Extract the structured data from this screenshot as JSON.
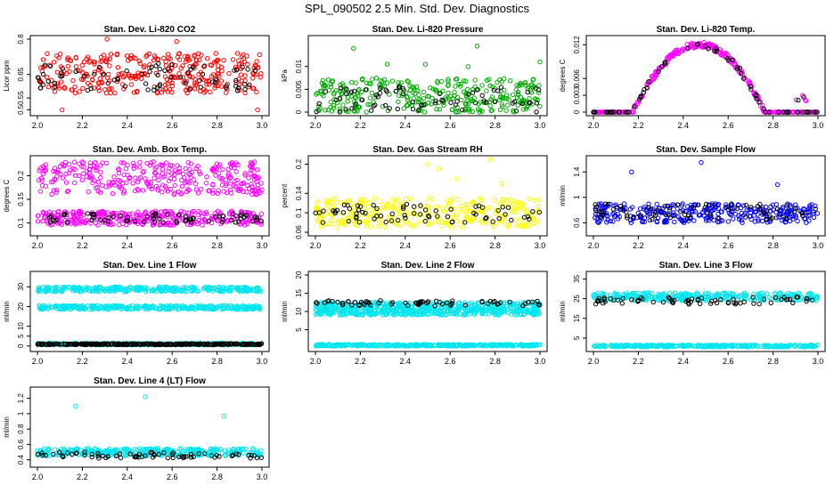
{
  "page_title": "SPL_090502  2.5 Min. Std. Dev. Diagnostics",
  "chart_data": [
    {
      "type": "scatter",
      "title": "Stan. Dev. Li-820 CO2",
      "ylabel": "Licor ppm",
      "xlim": [
        2.0,
        3.0
      ],
      "ylim": [
        0.49,
        0.8
      ],
      "xticks": [
        2.0,
        2.2,
        2.4,
        2.6,
        2.8,
        3.0
      ],
      "yticks": [
        0.5,
        0.55,
        0.65,
        0.8
      ],
      "series": [
        {
          "color": "#ff0000",
          "band": [
            0.57,
            0.74
          ],
          "outliers": [
            [
              2.31,
              0.8
            ],
            [
              2.62,
              0.79
            ],
            [
              2.11,
              0.5
            ],
            [
              2.98,
              0.5
            ]
          ]
        },
        {
          "color": "#000000",
          "band": [
            0.58,
            0.7
          ],
          "sparse": true
        }
      ]
    },
    {
      "type": "scatter",
      "title": "Stan. Dev. Li-820 Pressure",
      "ylabel": "kPa",
      "xlim": [
        2.0,
        3.0
      ],
      "ylim": [
        0.0,
        0.016
      ],
      "xticks": [
        2.0,
        2.2,
        2.4,
        2.6,
        2.8,
        3.0
      ],
      "yticks": [
        0.0,
        0.005,
        0.01
      ],
      "series": [
        {
          "color": "#00aa00",
          "band": [
            0.0,
            0.0075
          ],
          "outliers": [
            [
              2.17,
              0.014
            ],
            [
              2.72,
              0.0145
            ],
            [
              2.32,
              0.0105
            ],
            [
              2.49,
              0.0105
            ],
            [
              2.68,
              0.01
            ],
            [
              3.0,
              0.011
            ]
          ]
        },
        {
          "color": "#000000",
          "band": [
            0.0,
            0.006
          ],
          "sparse": true
        }
      ]
    },
    {
      "type": "scatter",
      "title": "Stan. Dev. Li-820 Temp.",
      "ylabel": "degrees C",
      "xlim": [
        2.0,
        3.0
      ],
      "ylim": [
        0.0,
        0.013
      ],
      "xticks": [
        2.0,
        2.2,
        2.4,
        2.6,
        2.8,
        3.0
      ],
      "yticks": [
        0.0,
        0.003,
        0.006,
        0.012
      ],
      "series": [
        {
          "color": "#ff00ff",
          "profile": "dome",
          "peak": 0.0125
        },
        {
          "color": "#000000",
          "profile": "dome",
          "peak": 0.0125,
          "sparse": true
        }
      ]
    },
    {
      "type": "scatter",
      "title": "Stan. Dev. Amb. Box Temp.",
      "ylabel": "degrees C",
      "xlim": [
        2.0,
        3.0
      ],
      "ylim": [
        0.08,
        0.235
      ],
      "xticks": [
        2.0,
        2.2,
        2.4,
        2.6,
        2.8,
        3.0
      ],
      "yticks": [
        0.1,
        0.15,
        0.2
      ],
      "series": [
        {
          "color": "#ff00ff",
          "band": [
            0.16,
            0.23
          ]
        },
        {
          "color": "#ff00ff",
          "band": [
            0.095,
            0.125
          ]
        },
        {
          "color": "#000000",
          "band": [
            0.1,
            0.12
          ],
          "sparse": true
        }
      ]
    },
    {
      "type": "scatter",
      "title": "Stan. Dev. Gas Stream RH",
      "ylabel": "percent",
      "xlim": [
        2.0,
        3.0
      ],
      "ylim": [
        0.06,
        0.21
      ],
      "xticks": [
        2.0,
        2.2,
        2.4,
        2.6,
        2.8,
        3.0
      ],
      "yticks": [
        0.06,
        0.1,
        0.14,
        0.2
      ],
      "series": [
        {
          "color": "#ffff00",
          "band": [
            0.07,
            0.13
          ],
          "outliers": [
            [
              2.5,
              0.2
            ],
            [
              2.55,
              0.19
            ],
            [
              2.63,
              0.17
            ],
            [
              2.78,
              0.21
            ],
            [
              2.83,
              0.16
            ]
          ]
        },
        {
          "color": "#000000",
          "band": [
            0.08,
            0.12
          ],
          "sparse": true
        }
      ]
    },
    {
      "type": "scatter",
      "title": "Stan. Dev. Sample Flow",
      "ylabel": "ml/min",
      "xlim": [
        2.0,
        3.0
      ],
      "ylim": [
        0.45,
        1.6
      ],
      "xticks": [
        2.0,
        2.2,
        2.4,
        2.6,
        2.8,
        3.0
      ],
      "yticks": [
        0.6,
        1.0,
        1.4
      ],
      "series": [
        {
          "color": "#0000ff",
          "band": [
            0.6,
            0.9
          ],
          "outliers": [
            [
              2.17,
              1.4
            ],
            [
              2.48,
              1.55
            ],
            [
              2.82,
              1.2
            ]
          ]
        },
        {
          "color": "#000000",
          "band": [
            0.65,
            0.9
          ],
          "sparse": true
        }
      ]
    },
    {
      "type": "scatter",
      "title": "Stan. Dev. Line 1 Flow",
      "ylabel": "ml/min",
      "xlim": [
        2.0,
        3.0
      ],
      "ylim": [
        -1,
        36
      ],
      "xticks": [
        2.0,
        2.2,
        2.4,
        2.6,
        2.8,
        3.0
      ],
      "yticks": [
        0,
        5,
        10,
        20,
        30
      ],
      "series": [
        {
          "color": "#00e5ee",
          "band": [
            27.5,
            30
          ]
        },
        {
          "color": "#00e5ee",
          "band": [
            18.5,
            20.5
          ]
        },
        {
          "color": "#00e5ee",
          "band": [
            0.5,
            1.5
          ]
        },
        {
          "color": "#000000",
          "band": [
            0.6,
            1.2
          ]
        }
      ]
    },
    {
      "type": "scatter",
      "title": "Stan. Dev. Line 2 Flow",
      "ylabel": "ml/min",
      "xlim": [
        2.0,
        3.0
      ],
      "ylim": [
        0,
        20
      ],
      "xticks": [
        2.0,
        2.2,
        2.4,
        2.6,
        2.8,
        3.0
      ],
      "yticks": [
        5,
        10,
        15,
        20
      ],
      "series": [
        {
          "color": "#00e5ee",
          "band": [
            10.5,
            12.5
          ]
        },
        {
          "color": "#00e5ee",
          "band": [
            9,
            10.5
          ]
        },
        {
          "color": "#00e5ee",
          "band": [
            0.5,
            1
          ]
        },
        {
          "color": "#000000",
          "band": [
            11.5,
            13
          ],
          "sparse": true
        }
      ]
    },
    {
      "type": "scatter",
      "title": "Stan. Dev. Line 3 Flow",
      "ylabel": "ml/min",
      "xlim": [
        2.0,
        3.0
      ],
      "ylim": [
        0,
        37
      ],
      "xticks": [
        2.0,
        2.2,
        2.4,
        2.6,
        2.8,
        3.0
      ],
      "yticks": [
        5,
        15,
        25,
        35
      ],
      "series": [
        {
          "color": "#00e5ee",
          "band": [
            24,
            28
          ]
        },
        {
          "color": "#00e5ee",
          "band": [
            0.5,
            1.5
          ]
        },
        {
          "color": "#000000",
          "band": [
            22,
            26
          ],
          "sparse": true
        }
      ]
    },
    {
      "type": "scatter",
      "title": "Stan. Dev. Line 4 (LT) Flow",
      "ylabel": "ml/min",
      "xlim": [
        2.0,
        3.0
      ],
      "ylim": [
        0.35,
        1.3
      ],
      "xticks": [
        2.0,
        2.2,
        2.4,
        2.6,
        2.8,
        3.0
      ],
      "yticks": [
        0.4,
        0.6,
        0.8,
        1.0,
        1.2
      ],
      "series": [
        {
          "color": "#00e5ee",
          "band": [
            0.45,
            0.55
          ],
          "outliers": [
            [
              2.17,
              1.1
            ],
            [
              2.48,
              1.22
            ],
            [
              2.83,
              0.97
            ]
          ]
        },
        {
          "color": "#000000",
          "band": [
            0.42,
            0.5
          ],
          "sparse": true
        }
      ]
    }
  ]
}
